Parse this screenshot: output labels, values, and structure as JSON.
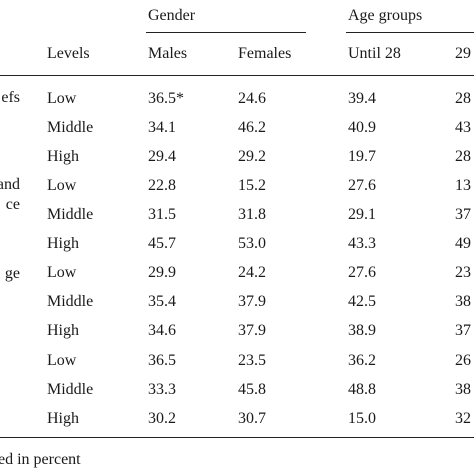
{
  "headers": {
    "gender": "Gender",
    "age_groups": "Age groups",
    "levels": "Levels",
    "males": "Males",
    "females": "Females",
    "until28": "Until 28",
    "age_next": "29"
  },
  "row_labels_partial": [
    "efs",
    "and",
    "ce",
    "ge"
  ],
  "rows": [
    {
      "level": "Low",
      "males": "36.5*",
      "females": "24.6",
      "until28": "39.4",
      "next": "28"
    },
    {
      "level": "Middle",
      "males": "34.1",
      "females": "46.2",
      "until28": "40.9",
      "next": "43"
    },
    {
      "level": "High",
      "males": "29.4",
      "females": "29.2",
      "until28": "19.7",
      "next": "28"
    },
    {
      "level": "Low",
      "males": "22.8",
      "females": "15.2",
      "until28": "27.6",
      "next": "13"
    },
    {
      "level": "Middle",
      "males": "31.5",
      "females": "31.8",
      "until28": "29.1",
      "next": "37"
    },
    {
      "level": "High",
      "males": "45.7",
      "females": "53.0",
      "until28": "43.3",
      "next": "49"
    },
    {
      "level": "Low",
      "males": "29.9",
      "females": "24.2",
      "until28": "27.6",
      "next": "23"
    },
    {
      "level": "Middle",
      "males": "35.4",
      "females": "37.9",
      "until28": "42.5",
      "next": "38"
    },
    {
      "level": "High",
      "males": "34.6",
      "females": "37.9",
      "until28": "38.9",
      "next": "37"
    },
    {
      "level": "Low",
      "males": "36.5",
      "females": "23.5",
      "until28": "36.2",
      "next": "26"
    },
    {
      "level": "Middle",
      "males": "33.3",
      "females": "45.8",
      "until28": "48.8",
      "next": "38"
    },
    {
      "level": "High",
      "males": "30.2",
      "females": "30.7",
      "until28": "15.0",
      "next": "32"
    }
  ],
  "footnote": "ed in percent"
}
